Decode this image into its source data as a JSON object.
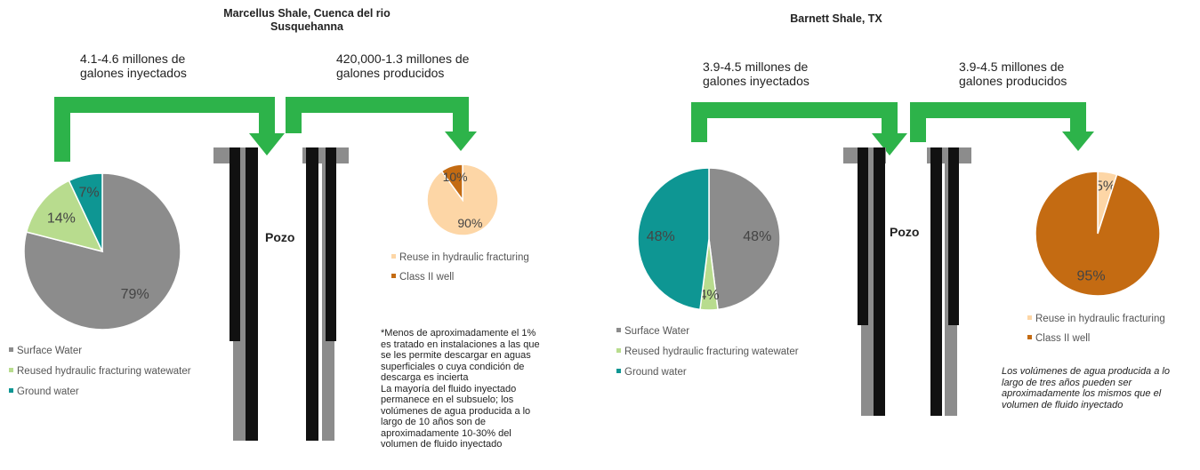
{
  "panels": [
    {
      "title": [
        "Marcellus  Shale, Cuenca del rio",
        "Susquehanna"
      ],
      "injected_label": [
        "4.1-4.6 millones de",
        "galones inyectados"
      ],
      "produced_label": [
        "420,000-1.3 millones de",
        "galones producidos"
      ],
      "well_label": "Pozo",
      "note": [
        "*Menos de aproximadamente el 1%",
        "es tratado en instalaciones a las que",
        "se les permite descargar en aguas",
        "superficiales o cuya condición de",
        "descarga es incierta",
        "La mayoría del fluido inyectado",
        "permanece en el subsuelo; los",
        "volúmenes de agua producida a lo",
        "largo de 10 años son de",
        "aproximadamente 10-30% del",
        "volumen de fluido inyectado"
      ]
    },
    {
      "title": [
        "Barnett Shale, TX"
      ],
      "injected_label": [
        "3.9-4.5 millones de",
        "galones inyectados"
      ],
      "produced_label": [
        "3.9-4.5 millones de",
        "galones producidos"
      ],
      "well_label": "Pozo",
      "note": [
        "Los volúmenes de agua producida a lo",
        "largo de tres años pueden ser",
        "aproximadamente los mismos que el",
        "volumen de fluido inyectado"
      ]
    }
  ],
  "chart_data": [
    {
      "type": "pie",
      "categories": [
        "Surface Water",
        "Reused hydraulic fracturing watewater",
        "Ground water"
      ],
      "values": [
        79,
        14,
        7
      ],
      "value_labels": [
        "79%",
        "14%",
        "7%"
      ],
      "colors": [
        "#8c8c8c",
        "#b8dc8e",
        "#0e9693"
      ]
    },
    {
      "type": "pie",
      "categories": [
        "Reuse in hydraulic fracturing",
        "Class II well"
      ],
      "values": [
        90,
        10
      ],
      "value_labels": [
        "90%",
        "10%"
      ],
      "colors": [
        "#fdd6a6",
        "#c46b12"
      ]
    },
    {
      "type": "pie",
      "categories": [
        "Surface Water",
        "Reused hydraulic fracturing watewater",
        "Ground water"
      ],
      "values": [
        48,
        4,
        48
      ],
      "value_labels": [
        "48%",
        "4%",
        "48%"
      ],
      "colors": [
        "#8c8c8c",
        "#b8dc8e",
        "#0e9693"
      ]
    },
    {
      "type": "pie",
      "categories": [
        "Reuse in hydraulic fracturing",
        "Class II well"
      ],
      "values": [
        5,
        95
      ],
      "value_labels": [
        "5%",
        "95%"
      ],
      "colors": [
        "#fdd6a6",
        "#c46b12"
      ]
    }
  ]
}
